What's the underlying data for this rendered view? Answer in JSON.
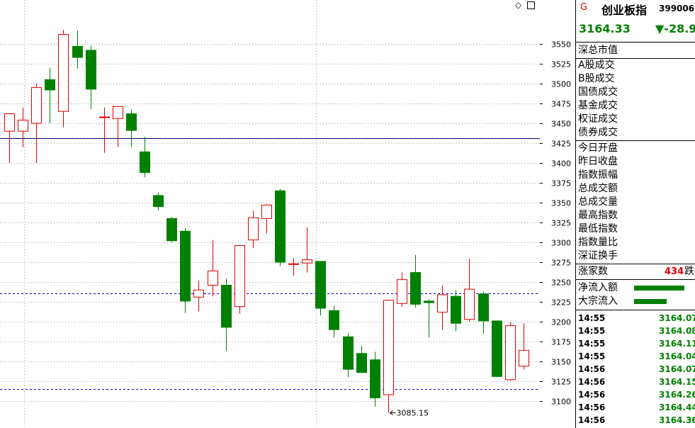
{
  "toolbar": {
    "diamond_icon": "◇"
  },
  "panel": {
    "marker": "G",
    "name": "创业板指",
    "code": "399006",
    "price": "3164.33",
    "change": "▼-28.9",
    "market_value_label": "深总市值",
    "trade_labels": [
      "A股成交",
      "B股成交",
      "国债成交",
      "基金成交",
      "权证成交",
      "债券成交"
    ],
    "stat_labels": [
      "今日开盘",
      "昨日收盘",
      "指数振幅",
      "总成交额",
      "总成交量",
      "最高指数",
      "最低指数",
      "指数量比",
      "深证换手"
    ],
    "up_label": "涨家数",
    "up_count": "434",
    "fall_label": "跌",
    "flow_labels": [
      "净流入额",
      "大宗流入"
    ],
    "ticks": [
      {
        "time": "14:55",
        "value": "3164.07"
      },
      {
        "time": "14:55",
        "value": "3164.08"
      },
      {
        "time": "14:55",
        "value": "3164.11"
      },
      {
        "time": "14:55",
        "value": "3164.04"
      },
      {
        "time": "14:56",
        "value": "3164.07"
      },
      {
        "time": "14:56",
        "value": "3164.15"
      },
      {
        "time": "14:56",
        "value": "3164.26"
      },
      {
        "time": "14:56",
        "value": "3164.44"
      },
      {
        "time": "14:56",
        "value": "3164.36"
      }
    ]
  },
  "colors": {
    "up": "#e00000",
    "down": "#008000",
    "ref_line": "#000080",
    "dash_line": "#0000c0"
  },
  "chart_data": {
    "type": "candlestick",
    "y_ticks": [
      3100,
      3125,
      3150,
      3175,
      3200,
      3225,
      3250,
      3275,
      3300,
      3325,
      3350,
      3375,
      3400,
      3425,
      3450,
      3475,
      3500,
      3525,
      3550
    ],
    "ylim": [
      3092,
      3570
    ],
    "reference_line": 3431,
    "dashed_lines": [
      3236,
      3115
    ],
    "low_annotation": "3085.15",
    "low_value": 3085.15,
    "candles": [
      {
        "o": 3440,
        "h": 3460,
        "l": 3400,
        "c": 3462
      },
      {
        "o": 3440,
        "h": 3470,
        "l": 3420,
        "c": 3454
      },
      {
        "o": 3450,
        "h": 3500,
        "l": 3400,
        "c": 3495
      },
      {
        "o": 3505,
        "h": 3520,
        "l": 3450,
        "c": 3492
      },
      {
        "o": 3465,
        "h": 3568,
        "l": 3445,
        "c": 3562
      },
      {
        "o": 3547,
        "h": 3567,
        "l": 3519,
        "c": 3533
      },
      {
        "o": 3542,
        "h": 3548,
        "l": 3468,
        "c": 3493
      },
      {
        "o": 3458,
        "h": 3470,
        "l": 3413,
        "c": 3458
      },
      {
        "o": 3456,
        "h": 3472,
        "l": 3420,
        "c": 3471
      },
      {
        "o": 3462,
        "h": 3468,
        "l": 3420,
        "c": 3441
      },
      {
        "o": 3414,
        "h": 3433,
        "l": 3382,
        "c": 3388
      },
      {
        "o": 3359,
        "h": 3363,
        "l": 3340,
        "c": 3345
      },
      {
        "o": 3330,
        "h": 3332,
        "l": 3300,
        "c": 3302
      },
      {
        "o": 3314,
        "h": 3318,
        "l": 3211,
        "c": 3226
      },
      {
        "o": 3231,
        "h": 3252,
        "l": 3213,
        "c": 3240
      },
      {
        "o": 3246,
        "h": 3303,
        "l": 3232,
        "c": 3264
      },
      {
        "o": 3246,
        "h": 3254,
        "l": 3163,
        "c": 3193
      },
      {
        "o": 3219,
        "h": 3296,
        "l": 3210,
        "c": 3296
      },
      {
        "o": 3303,
        "h": 3340,
        "l": 3293,
        "c": 3331
      },
      {
        "o": 3330,
        "h": 3348,
        "l": 3311,
        "c": 3347
      },
      {
        "o": 3365,
        "h": 3367,
        "l": 3270,
        "c": 3275
      },
      {
        "o": 3273,
        "h": 3280,
        "l": 3258,
        "c": 3273
      },
      {
        "o": 3274,
        "h": 3319,
        "l": 3262,
        "c": 3278
      },
      {
        "o": 3276,
        "h": 3276,
        "l": 3208,
        "c": 3217
      },
      {
        "o": 3214,
        "h": 3220,
        "l": 3180,
        "c": 3190
      },
      {
        "o": 3181,
        "h": 3185,
        "l": 3130,
        "c": 3140
      },
      {
        "o": 3160,
        "h": 3170,
        "l": 3138,
        "c": 3136
      },
      {
        "o": 3152,
        "h": 3162,
        "l": 3093,
        "c": 3104
      },
      {
        "o": 3108,
        "h": 3228,
        "l": 3085.15,
        "c": 3227
      },
      {
        "o": 3223,
        "h": 3262,
        "l": 3219,
        "c": 3253
      },
      {
        "o": 3262,
        "h": 3284,
        "l": 3218,
        "c": 3222
      },
      {
        "o": 3226,
        "h": 3228,
        "l": 3180,
        "c": 3224
      },
      {
        "o": 3212,
        "h": 3246,
        "l": 3190,
        "c": 3234
      },
      {
        "o": 3232,
        "h": 3240,
        "l": 3188,
        "c": 3198
      },
      {
        "o": 3203,
        "h": 3279,
        "l": 3200,
        "c": 3241
      },
      {
        "o": 3235,
        "h": 3238,
        "l": 3185,
        "c": 3201
      },
      {
        "o": 3201,
        "h": 3201,
        "l": 3130,
        "c": 3131
      },
      {
        "o": 3127,
        "h": 3200,
        "l": 3126,
        "c": 3195
      },
      {
        "o": 3144,
        "h": 3198,
        "l": 3140,
        "c": 3164
      }
    ]
  }
}
